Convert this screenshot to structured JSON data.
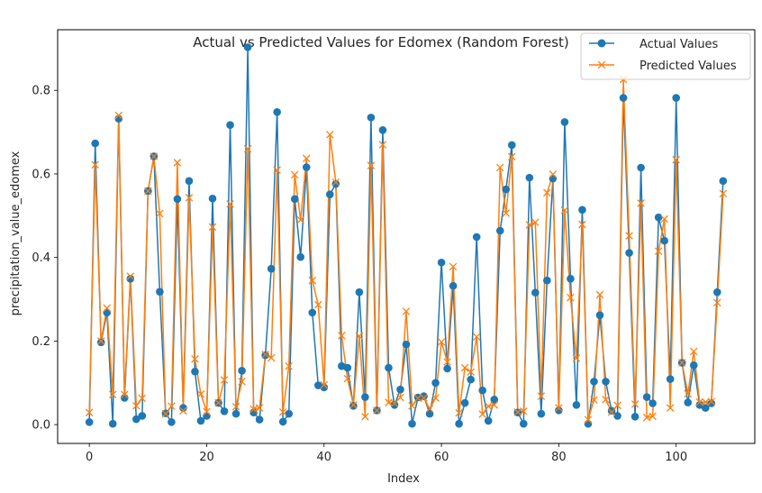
{
  "chart_data": {
    "type": "line",
    "title": "Actual vs Predicted Values for Edomex (Random Forest)",
    "xlabel": "Index",
    "ylabel": "precipitation_value_edomex",
    "xlim": [
      -5.4,
      113.4
    ],
    "ylim": [
      -0.045,
      0.945
    ],
    "xticks": [
      0,
      20,
      40,
      60,
      80,
      100
    ],
    "yticks": [
      0.0,
      0.2,
      0.4,
      0.6,
      0.8
    ],
    "ytick_labels": [
      "0.0",
      "0.2",
      "0.4",
      "0.6",
      "0.8"
    ],
    "grid": false,
    "legend_position": "top-right",
    "series": [
      {
        "name": "Actual Values",
        "color": "#1f77b4",
        "marker": "circle",
        "values": [
          0.006,
          0.673,
          0.197,
          0.268,
          0.002,
          0.732,
          0.064,
          0.349,
          0.013,
          0.021,
          0.559,
          0.642,
          0.318,
          0.027,
          0.006,
          0.54,
          0.04,
          0.583,
          0.127,
          0.009,
          0.021,
          0.541,
          0.052,
          0.032,
          0.717,
          0.026,
          0.129,
          0.903,
          0.029,
          0.012,
          0.166,
          0.373,
          0.748,
          0.007,
          0.026,
          0.54,
          0.401,
          0.616,
          0.268,
          0.094,
          0.089,
          0.551,
          0.576,
          0.14,
          0.136,
          0.045,
          0.317,
          0.066,
          0.735,
          0.034,
          0.705,
          0.136,
          0.047,
          0.084,
          0.192,
          0.002,
          0.065,
          0.068,
          0.026,
          0.1,
          0.388,
          0.134,
          0.332,
          0.002,
          0.052,
          0.108,
          0.449,
          0.082,
          0.009,
          0.06,
          0.464,
          0.563,
          0.669,
          0.029,
          0.002,
          0.591,
          0.316,
          0.026,
          0.345,
          0.589,
          0.034,
          0.724,
          0.349,
          0.047,
          0.514,
          0.002,
          0.103,
          0.262,
          0.103,
          0.033,
          0.021,
          0.782,
          0.411,
          0.019,
          0.615,
          0.066,
          0.051,
          0.496,
          0.44,
          0.109,
          0.782,
          0.148,
          0.053,
          0.142,
          0.047,
          0.04,
          0.051,
          0.317,
          0.583
        ]
      },
      {
        "name": "Predicted Values",
        "color": "#ff7f0e",
        "marker": "x",
        "values": [
          0.029,
          0.622,
          0.2,
          0.279,
          0.072,
          0.74,
          0.072,
          0.355,
          0.045,
          0.063,
          0.559,
          0.642,
          0.505,
          0.026,
          0.044,
          0.627,
          0.033,
          0.543,
          0.157,
          0.073,
          0.031,
          0.473,
          0.052,
          0.107,
          0.528,
          0.043,
          0.103,
          0.66,
          0.037,
          0.04,
          0.168,
          0.16,
          0.609,
          0.03,
          0.14,
          0.598,
          0.49,
          0.637,
          0.345,
          0.287,
          0.095,
          0.694,
          0.58,
          0.213,
          0.11,
          0.047,
          0.212,
          0.019,
          0.62,
          0.034,
          0.67,
          0.053,
          0.051,
          0.065,
          0.271,
          0.045,
          0.063,
          0.064,
          0.038,
          0.064,
          0.198,
          0.15,
          0.378,
          0.028,
          0.136,
          0.126,
          0.21,
          0.025,
          0.044,
          0.047,
          0.615,
          0.506,
          0.641,
          0.03,
          0.032,
          0.478,
          0.484,
          0.068,
          0.555,
          0.599,
          0.04,
          0.513,
          0.304,
          0.159,
          0.479,
          0.012,
          0.059,
          0.311,
          0.06,
          0.03,
          0.046,
          0.826,
          0.452,
          0.049,
          0.53,
          0.017,
          0.02,
          0.415,
          0.492,
          0.04,
          0.634,
          0.148,
          0.074,
          0.175,
          0.054,
          0.054,
          0.055,
          0.292,
          0.553
        ]
      }
    ]
  }
}
